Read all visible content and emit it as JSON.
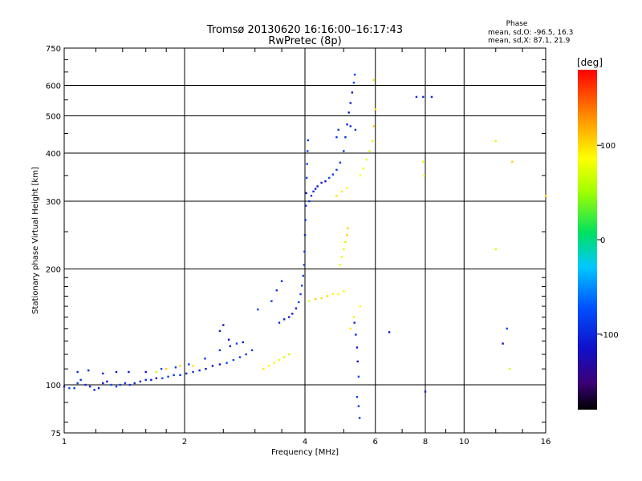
{
  "header": {
    "title_line1": "Tromsø 20130620 16:16:00–16:17:43",
    "title_line2": "RwPretec (8p)",
    "phase_label": "Phase",
    "phase_o": "mean, sd,O: -96.5, 16.3",
    "phase_x": "mean, sd,X:  87.1, 21.9"
  },
  "colorbar": {
    "unit": "[deg]",
    "range": [
      -180,
      180
    ],
    "ticks": [
      {
        "value": 100,
        "label": "100"
      },
      {
        "value": 0,
        "label": "0"
      },
      {
        "value": -100,
        "label": "-100"
      }
    ]
  },
  "chart_data": {
    "type": "scatter",
    "title": "Tromsø 20130620 16:16:00–16:17:43  RwPretec (8p)",
    "xlabel": "Frequency [MHz]",
    "ylabel": "Stationary phase Virtual Height [km]",
    "xscale": "log",
    "yscale": "log",
    "xlim": [
      1,
      16
    ],
    "ylim": [
      75,
      750
    ],
    "xticks": [
      1,
      2,
      4,
      6,
      8,
      10,
      16
    ],
    "yticks": [
      75,
      100,
      200,
      300,
      400,
      500,
      600,
      750
    ],
    "grid": true,
    "series": [
      {
        "name": "O-mode",
        "phase_deg": -96.5,
        "points": [
          [
            1.0,
            99
          ],
          [
            1.03,
            98
          ],
          [
            1.06,
            98
          ],
          [
            1.08,
            101
          ],
          [
            1.1,
            103
          ],
          [
            1.13,
            100
          ],
          [
            1.16,
            99
          ],
          [
            1.19,
            97
          ],
          [
            1.22,
            98
          ],
          [
            1.25,
            101
          ],
          [
            1.28,
            102
          ],
          [
            1.31,
            100
          ],
          [
            1.35,
            99
          ],
          [
            1.38,
            100
          ],
          [
            1.42,
            101
          ],
          [
            1.46,
            100
          ],
          [
            1.5,
            101
          ],
          [
            1.55,
            102
          ],
          [
            1.6,
            103
          ],
          [
            1.65,
            103
          ],
          [
            1.7,
            104
          ],
          [
            1.76,
            104
          ],
          [
            1.82,
            105
          ],
          [
            1.88,
            106
          ],
          [
            1.95,
            106
          ],
          [
            2.02,
            107
          ],
          [
            2.1,
            108
          ],
          [
            2.18,
            109
          ],
          [
            2.26,
            110
          ],
          [
            2.35,
            112
          ],
          [
            2.45,
            113
          ],
          [
            2.55,
            114
          ],
          [
            2.65,
            116
          ],
          [
            2.75,
            118
          ],
          [
            2.85,
            120
          ],
          [
            2.95,
            123
          ],
          [
            1.08,
            108
          ],
          [
            1.15,
            109
          ],
          [
            1.25,
            107
          ],
          [
            1.35,
            108
          ],
          [
            1.45,
            108
          ],
          [
            1.6,
            108
          ],
          [
            1.75,
            110
          ],
          [
            1.9,
            111
          ],
          [
            2.05,
            113
          ],
          [
            2.25,
            117
          ],
          [
            2.45,
            123
          ],
          [
            2.6,
            126
          ],
          [
            2.8,
            129
          ],
          [
            2.45,
            138
          ],
          [
            2.5,
            143
          ],
          [
            2.58,
            131
          ],
          [
            2.7,
            128
          ],
          [
            3.05,
            157
          ],
          [
            3.3,
            165
          ],
          [
            3.4,
            176
          ],
          [
            3.5,
            186
          ],
          [
            3.45,
            145
          ],
          [
            3.55,
            148
          ],
          [
            3.65,
            150
          ],
          [
            3.72,
            153
          ],
          [
            3.8,
            158
          ],
          [
            3.86,
            164
          ],
          [
            3.9,
            172
          ],
          [
            3.93,
            181
          ],
          [
            3.96,
            192
          ],
          [
            3.98,
            205
          ],
          [
            3.99,
            222
          ],
          [
            4.0,
            245
          ],
          [
            4.01,
            268
          ],
          [
            4.02,
            292
          ],
          [
            4.03,
            315
          ],
          [
            4.04,
            345
          ],
          [
            4.05,
            375
          ],
          [
            4.06,
            405
          ],
          [
            4.07,
            432
          ],
          [
            4.1,
            300
          ],
          [
            4.15,
            310
          ],
          [
            4.2,
            318
          ],
          [
            4.25,
            323
          ],
          [
            4.3,
            328
          ],
          [
            4.4,
            335
          ],
          [
            4.5,
            338
          ],
          [
            4.6,
            345
          ],
          [
            4.7,
            352
          ],
          [
            4.8,
            362
          ],
          [
            4.9,
            378
          ],
          [
            5.0,
            405
          ],
          [
            5.05,
            440
          ],
          [
            5.1,
            475
          ],
          [
            5.15,
            510
          ],
          [
            5.2,
            540
          ],
          [
            5.25,
            575
          ],
          [
            5.3,
            610
          ],
          [
            5.33,
            640
          ],
          [
            4.8,
            440
          ],
          [
            4.85,
            460
          ],
          [
            5.35,
            460
          ],
          [
            5.2,
            470
          ],
          [
            5.32,
            145
          ],
          [
            5.36,
            135
          ],
          [
            5.4,
            125
          ],
          [
            5.42,
            115
          ],
          [
            5.45,
            105
          ],
          [
            5.4,
            93
          ],
          [
            5.45,
            88
          ],
          [
            5.48,
            82
          ],
          [
            7.6,
            560
          ],
          [
            7.9,
            560
          ],
          [
            8.3,
            560
          ],
          [
            8.0,
            96
          ],
          [
            6.5,
            137
          ],
          [
            12.5,
            128
          ],
          [
            12.8,
            140
          ]
        ]
      },
      {
        "name": "X-mode",
        "phase_deg": 87.1,
        "points": [
          [
            1.7,
            108
          ],
          [
            1.8,
            110
          ],
          [
            1.95,
            112
          ],
          [
            2.1,
            112
          ],
          [
            3.15,
            110
          ],
          [
            3.25,
            112
          ],
          [
            3.35,
            114
          ],
          [
            3.45,
            116
          ],
          [
            3.55,
            118
          ],
          [
            3.65,
            120
          ],
          [
            4.1,
            165
          ],
          [
            4.25,
            167
          ],
          [
            4.4,
            168
          ],
          [
            4.55,
            170
          ],
          [
            4.7,
            172
          ],
          [
            4.85,
            172
          ],
          [
            5.0,
            175
          ],
          [
            4.9,
            205
          ],
          [
            4.95,
            215
          ],
          [
            5.0,
            225
          ],
          [
            5.05,
            235
          ],
          [
            5.1,
            245
          ],
          [
            5.12,
            255
          ],
          [
            4.8,
            310
          ],
          [
            4.95,
            318
          ],
          [
            5.1,
            325
          ],
          [
            5.5,
            350
          ],
          [
            5.6,
            365
          ],
          [
            5.7,
            385
          ],
          [
            5.8,
            405
          ],
          [
            5.9,
            430
          ],
          [
            5.95,
            470
          ],
          [
            6.0,
            520
          ],
          [
            5.95,
            620
          ],
          [
            5.2,
            140
          ],
          [
            5.3,
            150
          ],
          [
            5.5,
            160
          ],
          [
            7.9,
            380
          ],
          [
            7.95,
            350
          ],
          [
            12.0,
            430
          ],
          [
            12.0,
            225
          ],
          [
            13.0,
            110
          ],
          [
            13.2,
            380
          ],
          [
            16.0,
            310
          ]
        ]
      }
    ]
  }
}
